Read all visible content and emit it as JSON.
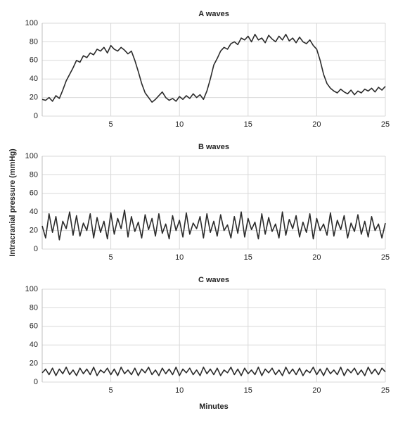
{
  "ylabel": "Intracranial pressure (mmHg)",
  "xlabel": "Minutes",
  "chart_data": [
    {
      "type": "line",
      "title": "A waves",
      "color": "#2b2b2b",
      "grid": true,
      "xlim": [
        0,
        25
      ],
      "xticks": [
        5,
        10,
        15,
        20,
        25
      ],
      "ylim": [
        0,
        100
      ],
      "yticks": [
        0,
        20,
        40,
        60,
        80,
        100
      ],
      "x": [
        0,
        0.25,
        0.5,
        0.75,
        1,
        1.25,
        1.5,
        1.75,
        2,
        2.25,
        2.5,
        2.75,
        3,
        3.25,
        3.5,
        3.75,
        4,
        4.25,
        4.5,
        4.75,
        5,
        5.25,
        5.5,
        5.75,
        6,
        6.25,
        6.5,
        6.75,
        7,
        7.25,
        7.5,
        7.75,
        8,
        8.25,
        8.5,
        8.75,
        9,
        9.25,
        9.5,
        9.75,
        10,
        10.25,
        10.5,
        10.75,
        11,
        11.25,
        11.5,
        11.75,
        12,
        12.25,
        12.5,
        12.75,
        13,
        13.25,
        13.5,
        13.75,
        14,
        14.25,
        14.5,
        14.75,
        15,
        15.25,
        15.5,
        15.75,
        16,
        16.25,
        16.5,
        16.75,
        17,
        17.25,
        17.5,
        17.75,
        18,
        18.25,
        18.5,
        18.75,
        19,
        19.25,
        19.5,
        19.75,
        20,
        20.25,
        20.5,
        20.75,
        21,
        21.25,
        21.5,
        21.75,
        22,
        22.25,
        22.5,
        22.75,
        23,
        23.25,
        23.5,
        23.75,
        24,
        24.25,
        24.5,
        24.75,
        25
      ],
      "values": [
        18,
        17,
        20,
        16,
        22,
        19,
        28,
        38,
        45,
        52,
        60,
        58,
        65,
        63,
        68,
        66,
        72,
        70,
        74,
        68,
        76,
        72,
        70,
        74,
        71,
        67,
        70,
        60,
        48,
        35,
        25,
        20,
        15,
        18,
        22,
        26,
        20,
        17,
        19,
        16,
        21,
        18,
        22,
        19,
        24,
        20,
        23,
        18,
        27,
        40,
        55,
        62,
        70,
        74,
        72,
        78,
        80,
        77,
        84,
        82,
        86,
        80,
        88,
        82,
        84,
        79,
        87,
        83,
        80,
        86,
        82,
        88,
        81,
        84,
        79,
        85,
        80,
        78,
        82,
        76,
        72,
        60,
        45,
        35,
        30,
        27,
        25,
        29,
        26,
        24,
        28,
        23,
        27,
        25,
        29,
        27,
        30,
        26,
        31,
        28,
        32
      ]
    },
    {
      "type": "line",
      "title": "B waves",
      "color": "#2b2b2b",
      "grid": true,
      "xlim": [
        0,
        25
      ],
      "xticks": [
        5,
        10,
        15,
        20,
        25
      ],
      "ylim": [
        0,
        100
      ],
      "yticks": [
        0,
        20,
        40,
        60,
        80,
        100
      ],
      "x": [
        0,
        0.25,
        0.5,
        0.75,
        1,
        1.25,
        1.5,
        1.75,
        2,
        2.25,
        2.5,
        2.75,
        3,
        3.25,
        3.5,
        3.75,
        4,
        4.25,
        4.5,
        4.75,
        5,
        5.25,
        5.5,
        5.75,
        6,
        6.25,
        6.5,
        6.75,
        7,
        7.25,
        7.5,
        7.75,
        8,
        8.25,
        8.5,
        8.75,
        9,
        9.25,
        9.5,
        9.75,
        10,
        10.25,
        10.5,
        10.75,
        11,
        11.25,
        11.5,
        11.75,
        12,
        12.25,
        12.5,
        12.75,
        13,
        13.25,
        13.5,
        13.75,
        14,
        14.25,
        14.5,
        14.75,
        15,
        15.25,
        15.5,
        15.75,
        16,
        16.25,
        16.5,
        16.75,
        17,
        17.25,
        17.5,
        17.75,
        18,
        18.25,
        18.5,
        18.75,
        19,
        19.25,
        19.5,
        19.75,
        20,
        20.25,
        20.5,
        20.75,
        21,
        21.25,
        21.5,
        21.75,
        22,
        22.25,
        22.5,
        22.75,
        23,
        23.25,
        23.5,
        23.75,
        24,
        24.25,
        24.5,
        24.75,
        25
      ],
      "values": [
        25,
        12,
        38,
        18,
        35,
        10,
        30,
        22,
        40,
        15,
        36,
        14,
        28,
        20,
        38,
        12,
        34,
        18,
        30,
        11,
        39,
        16,
        33,
        22,
        42,
        13,
        35,
        19,
        29,
        12,
        37,
        21,
        33,
        14,
        38,
        17,
        27,
        11,
        36,
        20,
        31,
        13,
        39,
        16,
        28,
        22,
        35,
        12,
        38,
        18,
        30,
        14,
        37,
        20,
        26,
        12,
        35,
        17,
        40,
        13,
        33,
        21,
        29,
        11,
        38,
        16,
        34,
        19,
        27,
        12,
        40,
        15,
        32,
        22,
        36,
        13,
        29,
        18,
        38,
        11,
        33,
        20,
        27,
        15,
        39,
        14,
        31,
        21,
        36,
        12,
        28,
        19,
        37,
        16,
        30,
        13,
        35,
        20,
        27,
        12,
        28
      ]
    },
    {
      "type": "line",
      "title": "C waves",
      "color": "#2b2b2b",
      "grid": true,
      "xlim": [
        0,
        25
      ],
      "xticks": [
        5,
        10,
        15,
        20,
        25
      ],
      "ylim": [
        0,
        100
      ],
      "yticks": [
        0,
        20,
        40,
        60,
        80,
        100
      ],
      "x": [
        0,
        0.25,
        0.5,
        0.75,
        1,
        1.25,
        1.5,
        1.75,
        2,
        2.25,
        2.5,
        2.75,
        3,
        3.25,
        3.5,
        3.75,
        4,
        4.25,
        4.5,
        4.75,
        5,
        5.25,
        5.5,
        5.75,
        6,
        6.25,
        6.5,
        6.75,
        7,
        7.25,
        7.5,
        7.75,
        8,
        8.25,
        8.5,
        8.75,
        9,
        9.25,
        9.5,
        9.75,
        10,
        10.25,
        10.5,
        10.75,
        11,
        11.25,
        11.5,
        11.75,
        12,
        12.25,
        12.5,
        12.75,
        13,
        13.25,
        13.5,
        13.75,
        14,
        14.25,
        14.5,
        14.75,
        15,
        15.25,
        15.5,
        15.75,
        16,
        16.25,
        16.5,
        16.75,
        17,
        17.25,
        17.5,
        17.75,
        18,
        18.25,
        18.5,
        18.75,
        19,
        19.25,
        19.5,
        19.75,
        20,
        20.25,
        20.5,
        20.75,
        21,
        21.25,
        21.5,
        21.75,
        22,
        22.25,
        22.5,
        22.75,
        23,
        23.25,
        23.5,
        23.75,
        24,
        24.25,
        24.5,
        24.75,
        25
      ],
      "values": [
        10,
        14,
        8,
        15,
        7,
        14,
        9,
        16,
        8,
        13,
        7,
        15,
        9,
        14,
        8,
        16,
        7,
        13,
        10,
        15,
        8,
        14,
        7,
        16,
        9,
        13,
        8,
        15,
        7,
        14,
        10,
        16,
        8,
        13,
        7,
        15,
        9,
        14,
        8,
        16,
        7,
        14,
        10,
        15,
        8,
        13,
        7,
        16,
        9,
        14,
        8,
        15,
        7,
        13,
        10,
        16,
        8,
        14,
        7,
        15,
        9,
        13,
        8,
        16,
        7,
        14,
        10,
        15,
        8,
        13,
        7,
        16,
        9,
        14,
        8,
        15,
        7,
        13,
        10,
        16,
        8,
        14,
        7,
        15,
        9,
        13,
        8,
        16,
        7,
        14,
        10,
        15,
        8,
        13,
        7,
        16,
        9,
        14,
        8,
        15,
        11
      ]
    }
  ]
}
